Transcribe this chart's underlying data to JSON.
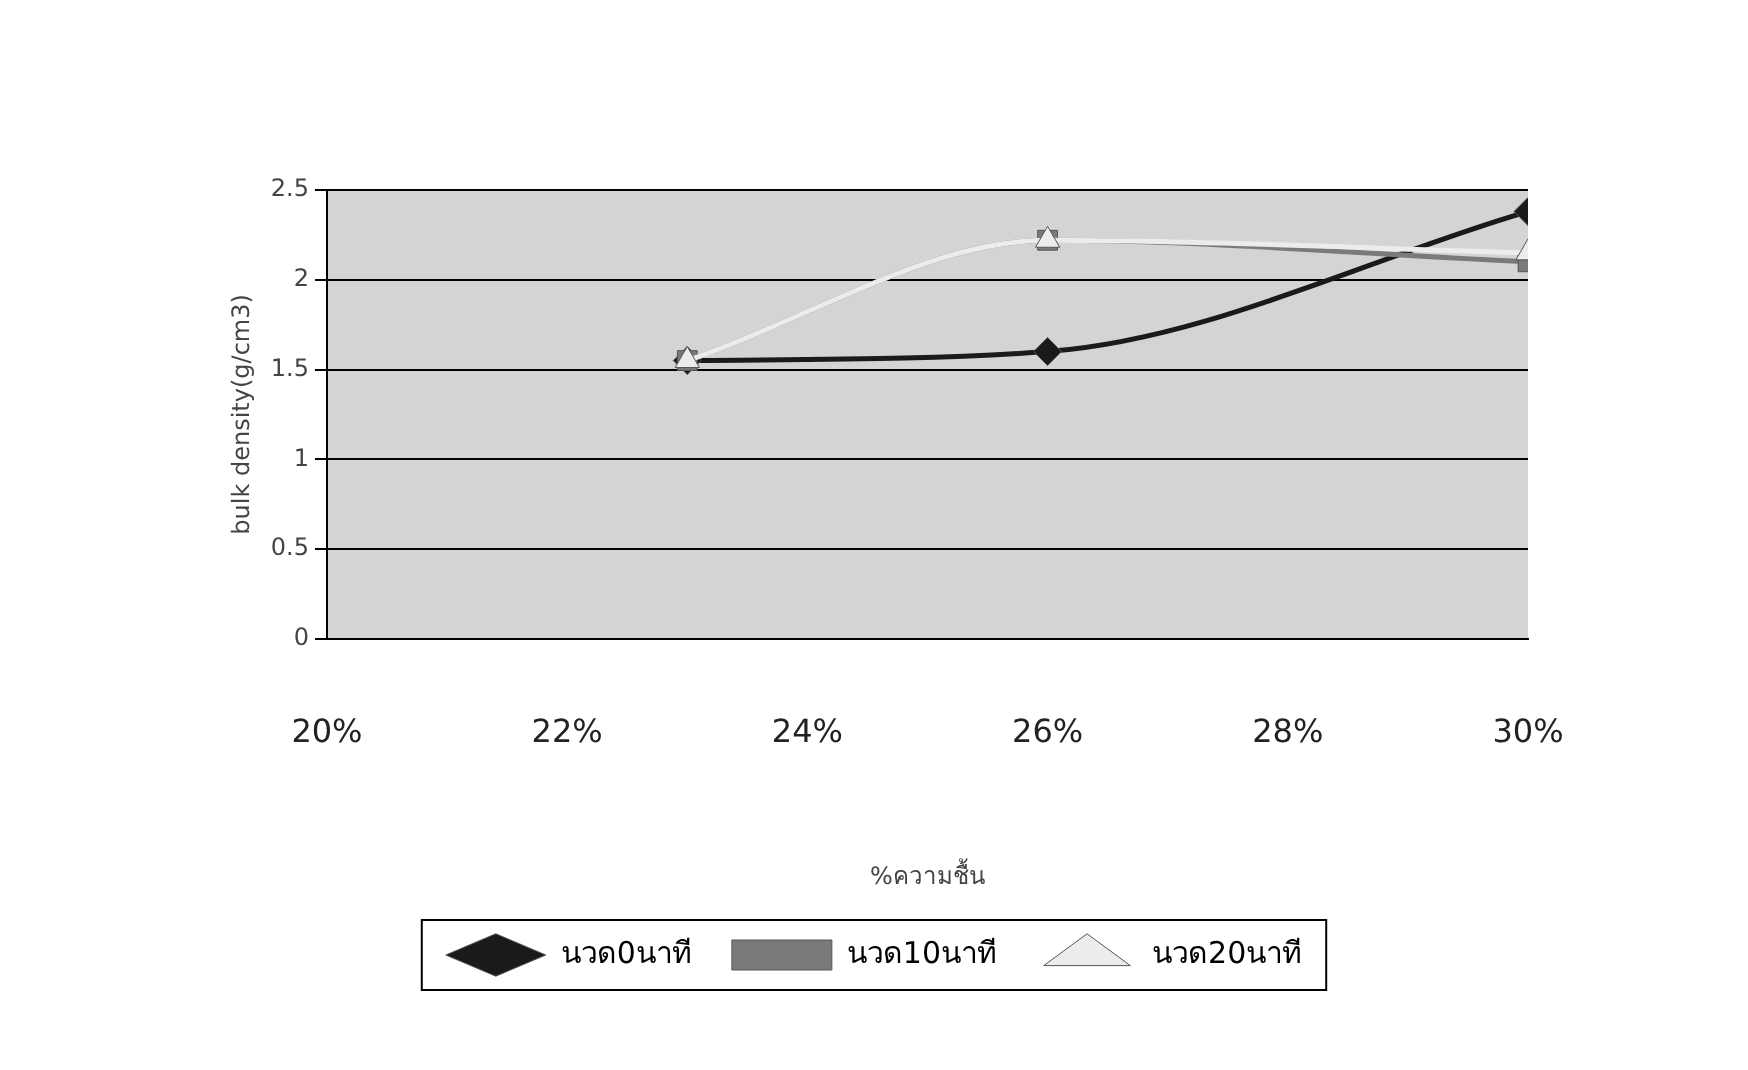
{
  "chart_data": {
    "type": "line",
    "xlabel": "%ความชื้น",
    "ylabel": "bulk density(g/cm3)",
    "xlim": [
      20,
      30
    ],
    "xticks": [
      {
        "value": 20,
        "label": "20%"
      },
      {
        "value": 22,
        "label": "22%"
      },
      {
        "value": 24,
        "label": "24%"
      },
      {
        "value": 26,
        "label": "26%"
      },
      {
        "value": 28,
        "label": "28%"
      },
      {
        "value": 30,
        "label": "30%"
      }
    ],
    "ylim": [
      0,
      2.5
    ],
    "yticks": [
      0,
      0.5,
      1,
      1.5,
      2,
      2.5
    ],
    "grid": "y",
    "legend": "bottom",
    "series": [
      {
        "name": "นวด0นาที",
        "color": "#1a1a1a",
        "marker": "diamond",
        "x": [
          23,
          26,
          30
        ],
        "values": [
          1.55,
          1.6,
          2.38
        ]
      },
      {
        "name": "นวด10นาที",
        "color": "#7a7a7a",
        "marker": "square",
        "x": [
          23,
          26,
          30
        ],
        "values": [
          1.55,
          2.22,
          2.1
        ]
      },
      {
        "name": "นวด20นาที",
        "color": "#ececec",
        "marker": "triangle",
        "x": [
          23,
          26,
          30
        ],
        "values": [
          1.55,
          2.22,
          2.15
        ]
      }
    ]
  }
}
